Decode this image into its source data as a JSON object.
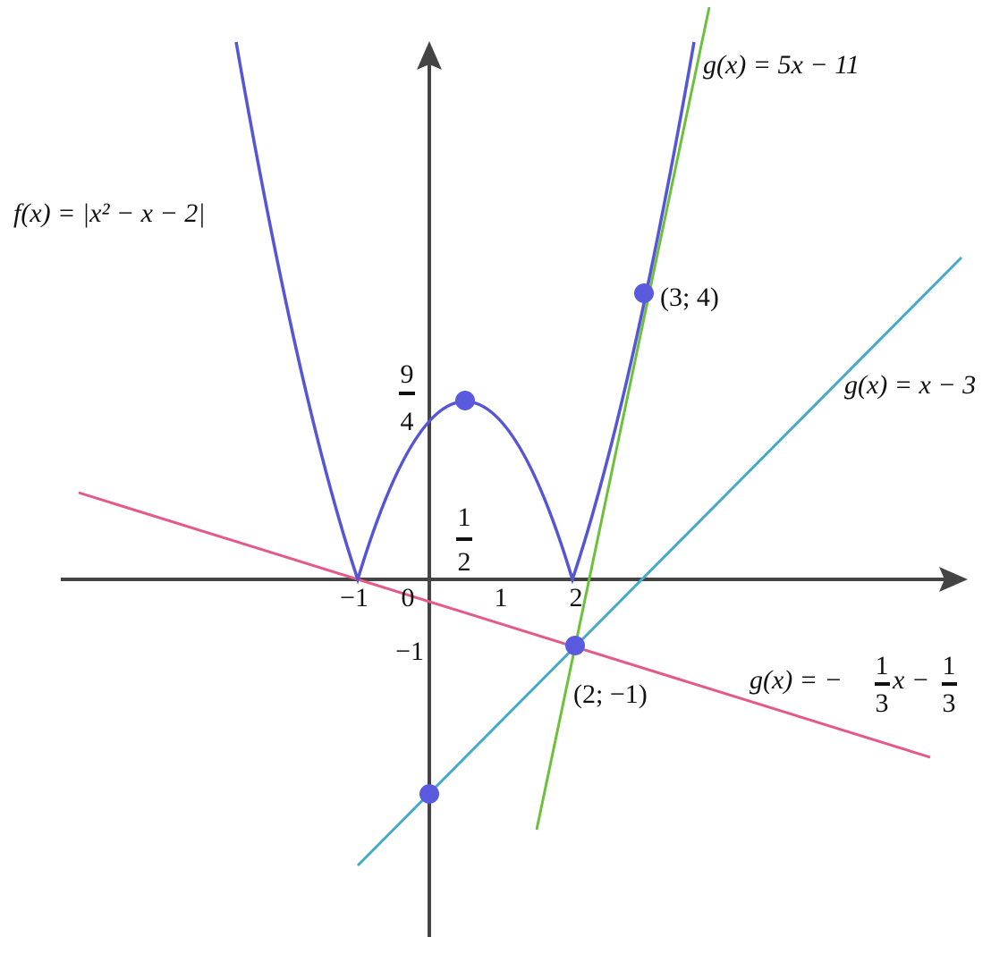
{
  "function_label": "f(x) = |x² − x − 2|",
  "lines": [
    {
      "label": "g(x) = 5x − 11"
    },
    {
      "label": "g(x) = x − 3"
    },
    {
      "label_start": "g(x) = −",
      "fraction_1": {
        "numerator": "1",
        "denominator": "3"
      },
      "label_middle": "x −",
      "fraction_2": {
        "numerator": "1",
        "denominator": "3"
      }
    }
  ],
  "x_axis_labels": [
    "−1",
    "0",
    "1",
    "2"
  ],
  "y_axis_labels": [
    "−1"
  ],
  "vertex_fraction": {
    "numerator": "9",
    "denominator": "4"
  },
  "half_fraction": {
    "numerator": "1",
    "denominator": "2"
  },
  "points": [
    "(3; 4)",
    "(2; −1)"
  ]
}
